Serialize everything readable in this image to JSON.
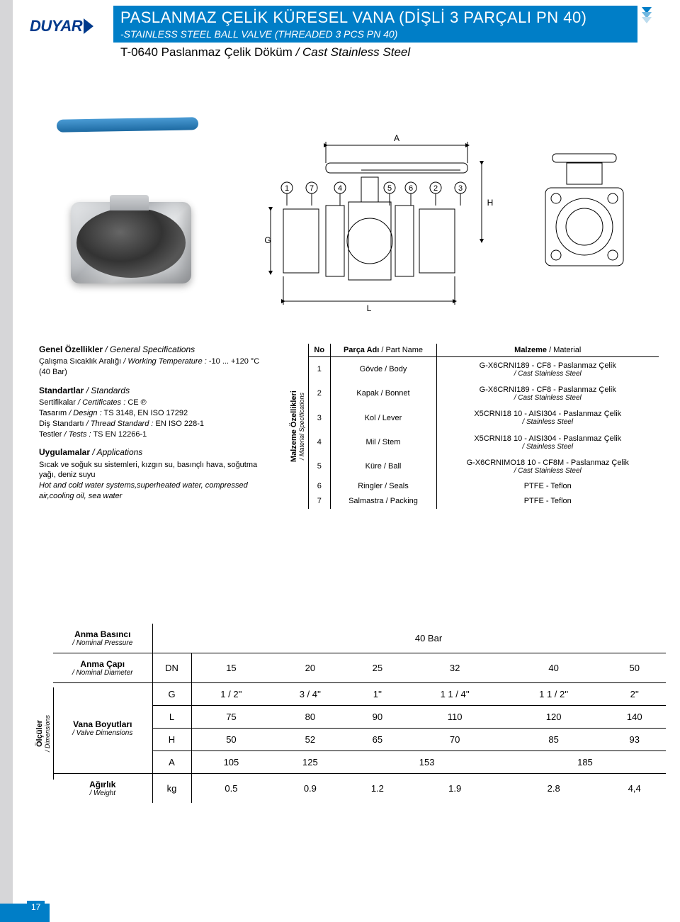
{
  "brand": "DUYAR",
  "header": {
    "title_tr": "PASLANMAZ ÇELİK KÜRESEL VANA (DİŞLİ 3 PARÇALI PN 40)",
    "title_en": "-STAINLESS STEEL BALL VALVE (THREADED 3 PCS PN 40)",
    "model_tr": "T-0640 Paslanmaz Çelik Döküm",
    "model_en": "/ Cast Stainless Steel"
  },
  "colors": {
    "brand_blue": "#003a8c",
    "banner_blue": "#007ec7",
    "gray_bar": "#d6d6d8"
  },
  "diagram": {
    "callouts": [
      "1",
      "7",
      "4",
      "5",
      "6",
      "2",
      "3"
    ],
    "dims": {
      "A": "A",
      "H": "H",
      "G": "G",
      "L": "L"
    }
  },
  "general_specs_heading": {
    "tr": "Genel Özellikler",
    "en": "/ General Specifications"
  },
  "working_temp": {
    "label_tr": "Çalışma Sıcaklık Aralığı",
    "label_en": "/ Working Temperature :",
    "value": "-10 ... +120 °C (40 Bar)"
  },
  "standards_heading": {
    "tr": "Standartlar",
    "en": "/ Standards"
  },
  "standards": [
    {
      "label_tr": "Sertifikalar",
      "label_en": "/ Certificates :",
      "value": "CE  ℗"
    },
    {
      "label_tr": "Tasarım",
      "label_en": "/ Design :",
      "value": "TS 3148, EN ISO 17292"
    },
    {
      "label_tr": "Diş Standartı",
      "label_en": "/ Thread Standard :",
      "value": "EN ISO 228-1"
    },
    {
      "label_tr": "Testler",
      "label_en": "/ Tests :",
      "value": "TS EN 12266-1"
    }
  ],
  "applications_heading": {
    "tr": "Uygulamalar",
    "en": "/ Applications"
  },
  "applications": {
    "tr": "Sıcak ve soğuk su sistemleri, kızgın su, basınçlı hava, soğutma yağı, deniz suyu",
    "en": "Hot and cold water systems,superheated water, compressed air,cooling oil, sea water"
  },
  "material_heading": {
    "rot_tr": "Malzeme Özellikleri",
    "rot_en": "/ Material Specifications"
  },
  "material_cols": {
    "no": "No",
    "part_tr": "Parça Adı",
    "part_en": "/ Part Name",
    "mat_tr": "Malzeme",
    "mat_en": "/ Material"
  },
  "materials": [
    {
      "no": "1",
      "part_tr": "Gövde",
      "part_en": "/ Body",
      "mat": "G-X6CRNI189 - CF8 - Paslanmaz Çelik",
      "mat_sub": "/ Cast Stainless Steel"
    },
    {
      "no": "2",
      "part_tr": "Kapak",
      "part_en": "/ Bonnet",
      "mat": "G-X6CRNI189 - CF8 - Paslanmaz Çelik",
      "mat_sub": "/ Cast Stainless Steel"
    },
    {
      "no": "3",
      "part_tr": "Kol",
      "part_en": "/ Lever",
      "mat": "X5CRNI18 10 - AISI304 - Paslanmaz Çelik",
      "mat_sub": "/ Stainless Steel"
    },
    {
      "no": "4",
      "part_tr": "Mil",
      "part_en": "/ Stem",
      "mat": "X5CRNI18 10 - AISI304 - Paslanmaz Çelik",
      "mat_sub": "/ Stainless Steel"
    },
    {
      "no": "5",
      "part_tr": "Küre",
      "part_en": "/ Ball",
      "mat": "G-X6CRNIMO18 10 - CF8M - Paslanmaz Çelik",
      "mat_sub": "/ Cast Stainless Steel"
    },
    {
      "no": "6",
      "part_tr": "Ringler",
      "part_en": "/ Seals",
      "mat": "PTFE - Teflon",
      "mat_sub": ""
    },
    {
      "no": "7",
      "part_tr": "Salmastra",
      "part_en": "/ Packing",
      "mat": "PTFE - Teflon",
      "mat_sub": ""
    }
  ],
  "dimensions_heading": {
    "tr": "Ölçüler",
    "en": "/ Dimensions"
  },
  "dim_rows": {
    "pressure": {
      "label_tr": "Anma Basıncı",
      "label_en": "/ Nominal Pressure",
      "value": "40 Bar"
    },
    "diameter": {
      "label_tr": "Anma Çapı",
      "label_en": "/ Nominal Diameter",
      "key": "DN",
      "values": [
        "15",
        "20",
        "25",
        "32",
        "40",
        "50"
      ]
    },
    "valve_dims": {
      "label_tr": "Vana Boyutları",
      "label_en": "/ Valve Dimensions"
    },
    "G": [
      "1 / 2''",
      "3 / 4''",
      "1''",
      "1 1 / 4''",
      "1 1 / 2''",
      "2''"
    ],
    "L": [
      "75",
      "80",
      "90",
      "110",
      "120",
      "140"
    ],
    "H": [
      "50",
      "52",
      "65",
      "70",
      "85",
      "93"
    ],
    "A_colspan": [
      [
        "105",
        1
      ],
      [
        "125",
        1
      ],
      [
        "153",
        2
      ],
      [
        "185",
        2
      ]
    ],
    "weight": {
      "label_tr": "Ağırlık",
      "label_en": "/ Weight",
      "key": "kg",
      "values": [
        "0.5",
        "0.9",
        "1.2",
        "1.9",
        "2.8",
        "4,4"
      ]
    }
  },
  "page_number": "17"
}
